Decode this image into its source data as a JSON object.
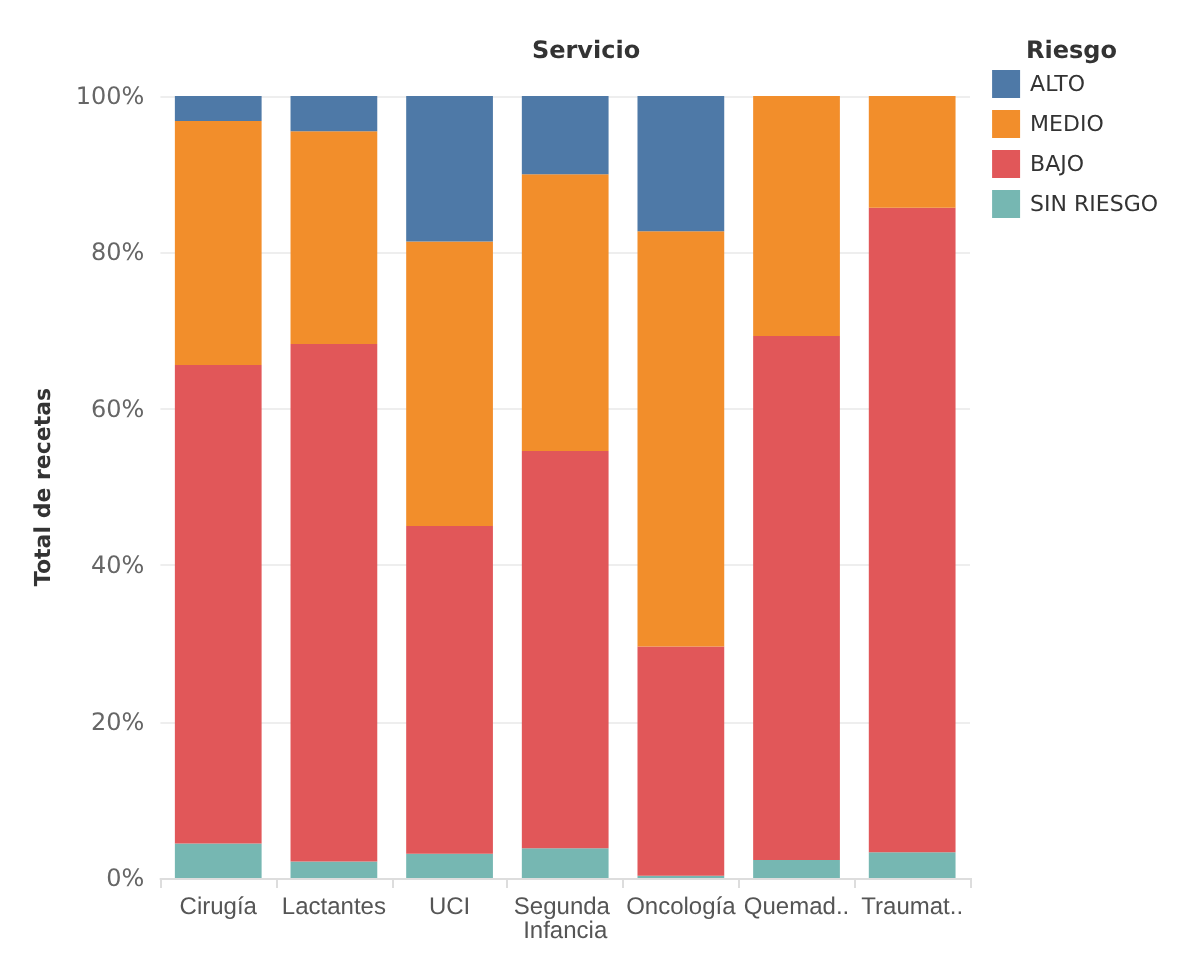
{
  "chart_data": {
    "type": "bar",
    "stacked": true,
    "title": "Servicio",
    "ylabel": "Total de recetas",
    "legend_title": "Riesgo",
    "legend": "top right",
    "grid": "y",
    "categories": [
      "Cirugía",
      "Lactantes",
      "UCI",
      "Segunda Infancia",
      "Oncología",
      "Quemad..",
      "Traumat.."
    ],
    "ylim": [
      0,
      100
    ],
    "yticks": [
      {
        "value": 0,
        "label": "0%"
      },
      {
        "value": 20,
        "label": "20%"
      },
      {
        "value": 40,
        "label": "40%"
      },
      {
        "value": 60,
        "label": "60%"
      },
      {
        "value": 80,
        "label": "80%"
      },
      {
        "value": 100,
        "label": "100%"
      }
    ],
    "series": [
      {
        "name": "SIN RIESGO",
        "color": "#76b7b2",
        "values": [
          4.4,
          2.1,
          3.1,
          3.8,
          0.3,
          2.3,
          3.3
        ]
      },
      {
        "name": "BAJO",
        "color": "#e15759",
        "values": [
          61.2,
          66.2,
          41.9,
          50.8,
          29.3,
          67.0,
          82.4
        ]
      },
      {
        "name": "MEDIO",
        "color": "#f28e2b",
        "values": [
          31.2,
          27.2,
          36.4,
          35.4,
          53.1,
          30.7,
          14.3
        ]
      },
      {
        "name": "ALTO",
        "color": "#4e79a7",
        "values": [
          3.2,
          4.5,
          18.6,
          10.0,
          17.3,
          null,
          null
        ]
      }
    ]
  }
}
